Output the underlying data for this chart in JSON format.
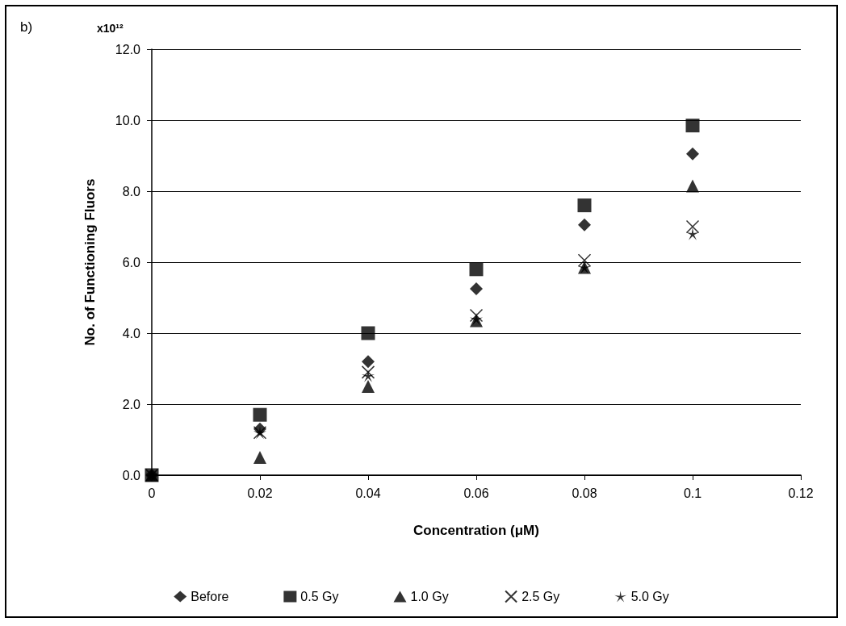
{
  "chart_data": {
    "type": "scatter",
    "title": "b)",
    "xlabel": "Concentration (μM)",
    "ylabel": "No. of Functioning Fluors",
    "annotations": [
      "x10¹²"
    ],
    "x": [
      0,
      0.02,
      0.04,
      0.06,
      0.08,
      0.1
    ],
    "series": [
      {
        "name": "Before",
        "color": "#000000",
        "marker": "diamond",
        "values": [
          0,
          1.3,
          3.2,
          5.25,
          7.05,
          9.05
        ]
      },
      {
        "name": "0.5 Gy",
        "color": "#000000",
        "marker": "square",
        "values": [
          0,
          1.7,
          4.0,
          5.8,
          7.6,
          9.85
        ]
      },
      {
        "name": "1.0 Gy",
        "color": "#000000",
        "marker": "triangle",
        "values": [
          0,
          0.5,
          2.5,
          4.35,
          5.85,
          8.15
        ]
      },
      {
        "name": "2.5 Gy",
        "color": "#000000",
        "marker": "cross",
        "values": [
          0,
          1.2,
          2.9,
          4.5,
          6.05,
          7.0
        ]
      },
      {
        "name": "5.0 Gy",
        "color": "#000000",
        "marker": "star",
        "values": [
          0,
          1.2,
          2.8,
          4.4,
          5.85,
          6.8
        ]
      }
    ],
    "xlim": [
      0,
      0.12
    ],
    "xticks": [
      0,
      0.02,
      0.04,
      0.06,
      0.08,
      0.1,
      0.12
    ],
    "ylim": [
      0,
      12
    ],
    "yticks": [
      {
        "value": 0,
        "label": "0.0"
      },
      {
        "value": 2,
        "label": "2.0"
      },
      {
        "value": 4,
        "label": "4.0"
      },
      {
        "value": 6,
        "label": "6.0"
      },
      {
        "value": 8,
        "label": "8.0"
      },
      {
        "value": 10,
        "label": "10.0"
      },
      {
        "value": 12,
        "label": "12.0"
      }
    ],
    "grid": "y",
    "legend": "bottom"
  }
}
